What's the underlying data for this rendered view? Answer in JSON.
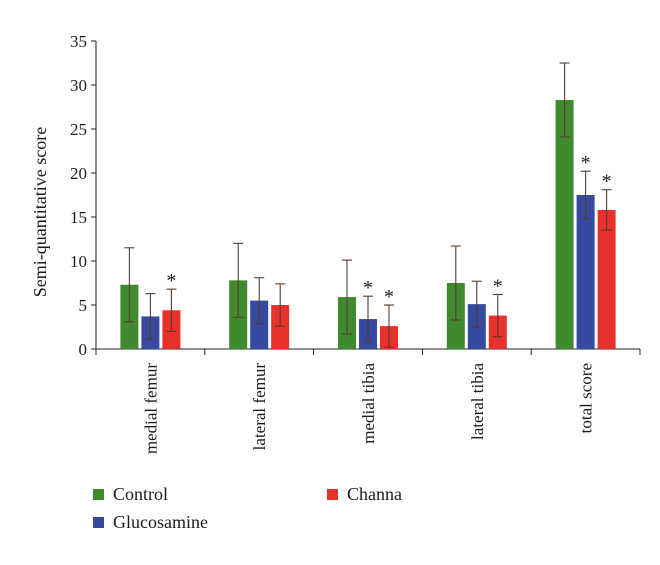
{
  "chart_data": {
    "type": "bar",
    "ylabel": "Semi-quantitative score",
    "xlabel": "",
    "ylim": [
      0,
      35
    ],
    "yticks": [
      0,
      5,
      10,
      15,
      20,
      25,
      30,
      35
    ],
    "categories": [
      "medial femur",
      "lateral femur",
      "medial tibia",
      "lateral tibia",
      "total score"
    ],
    "series": [
      {
        "name": "Control",
        "color": "#3f8a2f",
        "values": [
          7.3,
          7.8,
          5.9,
          7.5,
          28.3
        ],
        "errors": [
          4.2,
          4.2,
          4.2,
          4.2,
          4.2
        ],
        "significant": [
          false,
          false,
          false,
          false,
          false
        ]
      },
      {
        "name": "Glucosamine",
        "color": "#3549a0",
        "values": [
          3.7,
          5.5,
          3.4,
          5.1,
          17.5
        ],
        "errors": [
          2.6,
          2.6,
          2.6,
          2.6,
          2.7
        ],
        "significant": [
          false,
          false,
          true,
          false,
          true
        ]
      },
      {
        "name": "Channa",
        "color": "#e8302c",
        "values": [
          4.4,
          5.0,
          2.6,
          3.8,
          15.8
        ],
        "errors": [
          2.4,
          2.4,
          2.4,
          2.4,
          2.3
        ],
        "significant": [
          true,
          false,
          true,
          true,
          true
        ]
      }
    ],
    "significance_marker": "*",
    "legend_position": "bottom",
    "grid": false
  }
}
